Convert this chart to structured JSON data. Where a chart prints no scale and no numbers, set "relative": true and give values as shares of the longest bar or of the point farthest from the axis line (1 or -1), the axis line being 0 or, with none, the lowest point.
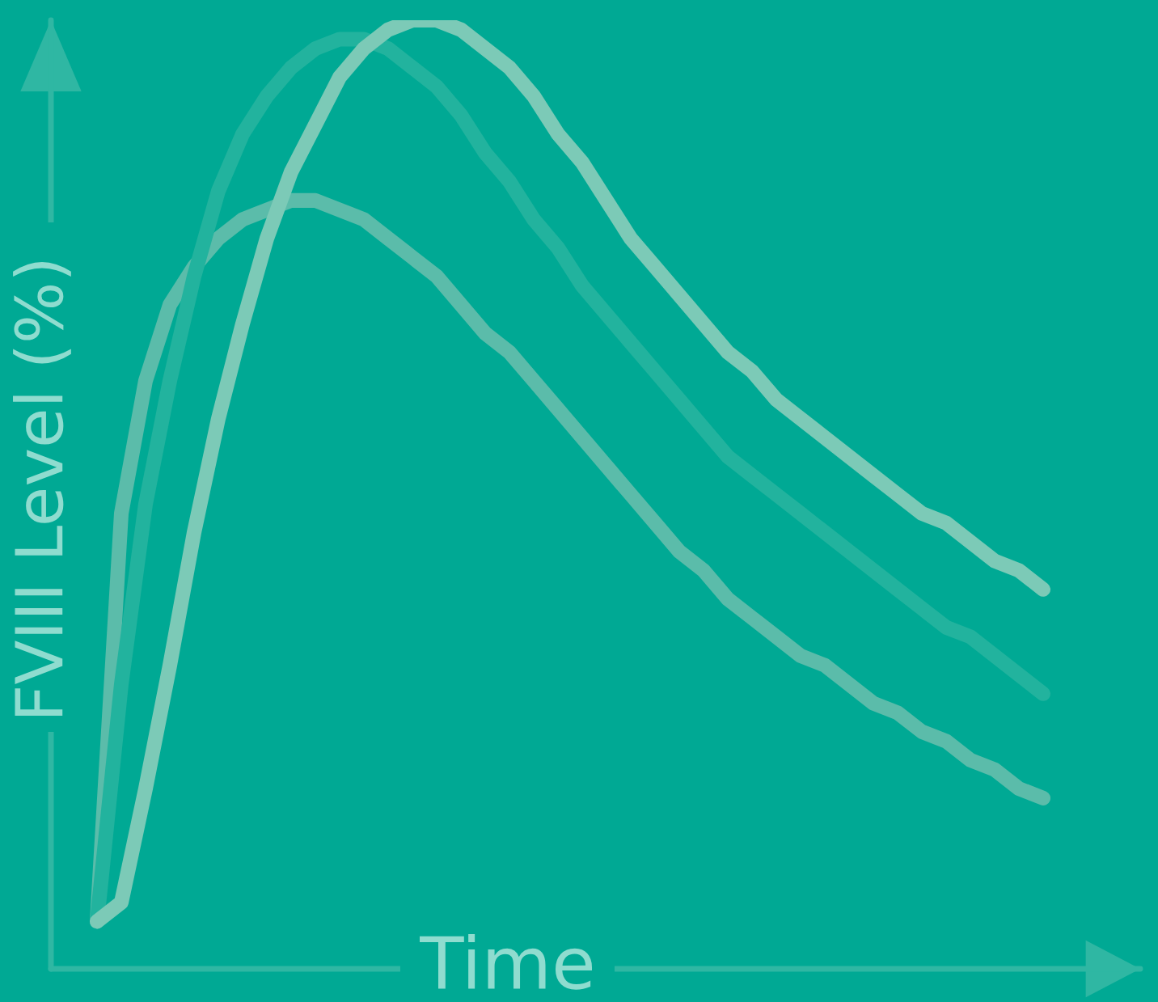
{
  "chart_data": {
    "type": "line",
    "relative": true,
    "xlabel": "Time",
    "ylabel": "FVIII Level (%)",
    "categories": [
      null,
      null,
      null,
      null,
      null,
      null,
      null,
      null,
      null,
      null,
      null,
      null,
      null,
      null,
      null,
      null,
      null,
      null,
      null,
      null,
      null,
      null,
      null,
      null,
      null,
      null,
      null,
      null,
      null,
      null,
      null,
      null,
      null,
      null,
      null,
      null,
      null,
      null,
      null,
      null
    ],
    "series": [
      {
        "color": "#5bbcaa",
        "values": [
          0.05,
          0.48,
          0.62,
          0.7,
          0.74,
          0.77,
          0.79,
          0.8,
          0.81,
          0.81,
          0.8,
          0.79,
          0.77,
          0.75,
          0.73,
          0.7,
          0.67,
          0.65,
          0.62,
          0.59,
          0.56,
          0.53,
          0.5,
          0.47,
          0.44,
          0.42,
          0.39,
          0.37,
          0.35,
          0.33,
          0.32,
          0.3,
          0.28,
          0.27,
          0.25,
          0.24,
          0.22,
          0.21,
          0.19,
          0.18
        ]
      },
      {
        "color": "#22b39e",
        "values": [
          0.05,
          0.3,
          0.49,
          0.62,
          0.73,
          0.82,
          0.88,
          0.92,
          0.95,
          0.97,
          0.98,
          0.98,
          0.97,
          0.95,
          0.93,
          0.9,
          0.86,
          0.83,
          0.79,
          0.76,
          0.72,
          0.69,
          0.66,
          0.63,
          0.6,
          0.57,
          0.54,
          0.52,
          0.5,
          0.48,
          0.46,
          0.44,
          0.42,
          0.4,
          0.38,
          0.36,
          0.35,
          0.33,
          0.31,
          0.29
        ]
      },
      {
        "color": "#7ccab7",
        "values": [
          0.05,
          0.07,
          0.19,
          0.32,
          0.46,
          0.58,
          0.68,
          0.77,
          0.84,
          0.89,
          0.94,
          0.97,
          0.99,
          1.0,
          1.0,
          0.99,
          0.97,
          0.95,
          0.92,
          0.88,
          0.85,
          0.81,
          0.77,
          0.74,
          0.71,
          0.68,
          0.65,
          0.63,
          0.6,
          0.58,
          0.56,
          0.54,
          0.52,
          0.5,
          0.48,
          0.47,
          0.45,
          0.43,
          0.42,
          0.4
        ]
      }
    ]
  }
}
